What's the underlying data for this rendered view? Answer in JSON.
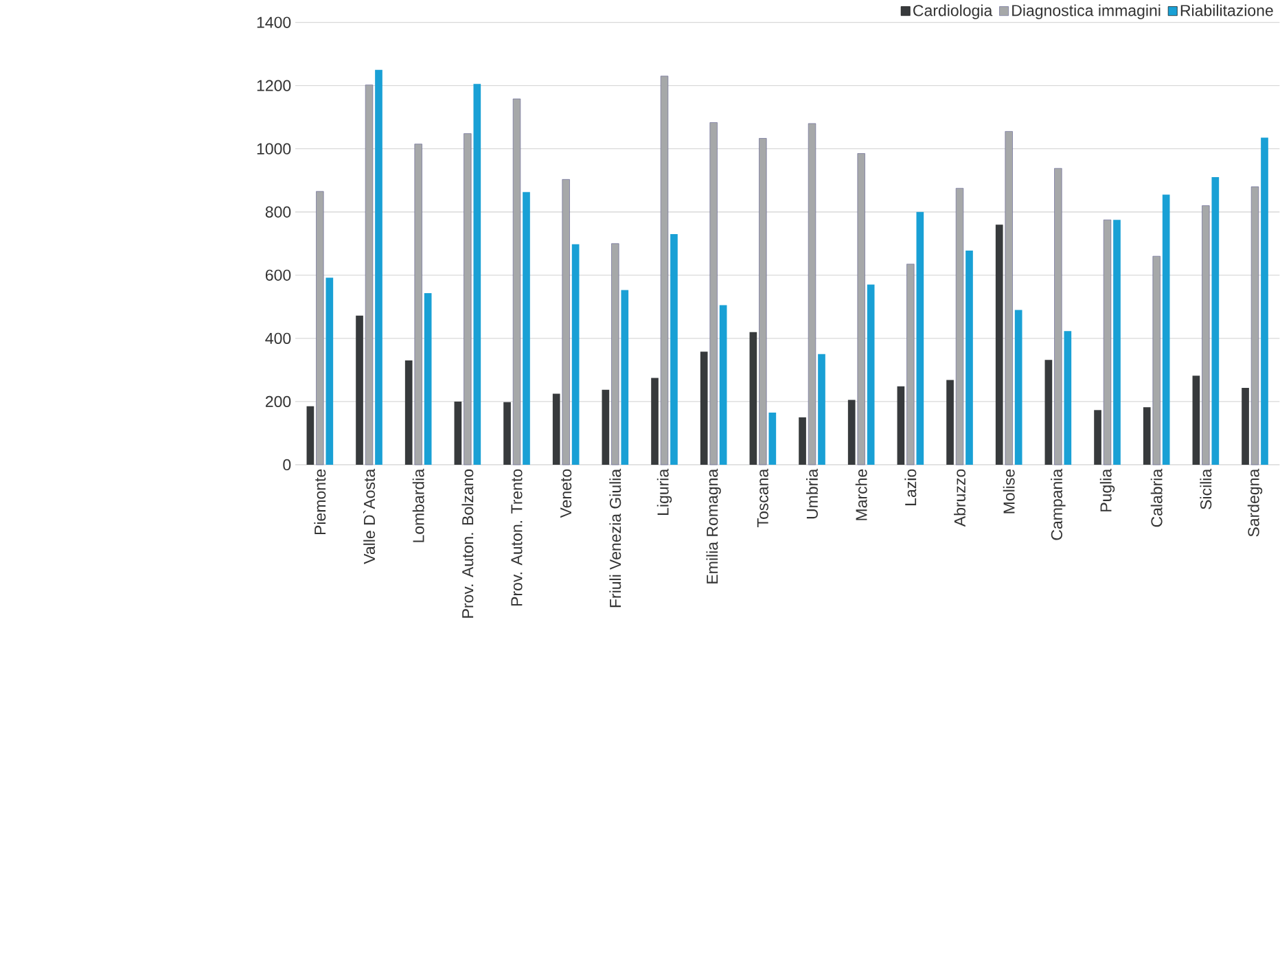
{
  "chart_data": {
    "type": "bar",
    "categories": [
      "Piemonte",
      "Valle D`Aosta",
      "Lombardia",
      "Prov. Auton. Bolzano",
      "Prov. Auton. Trento",
      "Veneto",
      "Friuli Venezia Giulia",
      "Liguria",
      "Emilia Romagna",
      "Toscana",
      "Umbria",
      "Marche",
      "Lazio",
      "Abruzzo",
      "Molise",
      "Campania",
      "Puglia",
      "Calabria",
      "Sicilia",
      "Sardegna"
    ],
    "series": [
      {
        "name": "Cardiologia",
        "color": "#373a3c",
        "values": [
          185,
          472,
          330,
          200,
          198,
          225,
          237,
          275,
          358,
          420,
          150,
          205,
          248,
          268,
          760,
          332,
          173,
          182,
          282,
          243
        ]
      },
      {
        "name": "Diagnostica immagini",
        "color": "#a6a8a9",
        "values": [
          865,
          1202,
          1015,
          1048,
          1158,
          903,
          700,
          1230,
          1083,
          1033,
          1080,
          985,
          635,
          875,
          1055,
          938,
          775,
          660,
          820,
          880
        ]
      },
      {
        "name": "Riabilitazione",
        "color": "#19a0d5",
        "values": [
          592,
          1250,
          543,
          1205,
          863,
          698,
          553,
          730,
          505,
          165,
          350,
          570,
          800,
          678,
          490,
          423,
          775,
          855,
          910,
          1035
        ]
      }
    ],
    "ylim": [
      0,
      1400
    ],
    "yticks": [
      0,
      200,
      400,
      600,
      800,
      1000,
      1200,
      1400
    ],
    "grid": "y",
    "legend": "top right"
  }
}
